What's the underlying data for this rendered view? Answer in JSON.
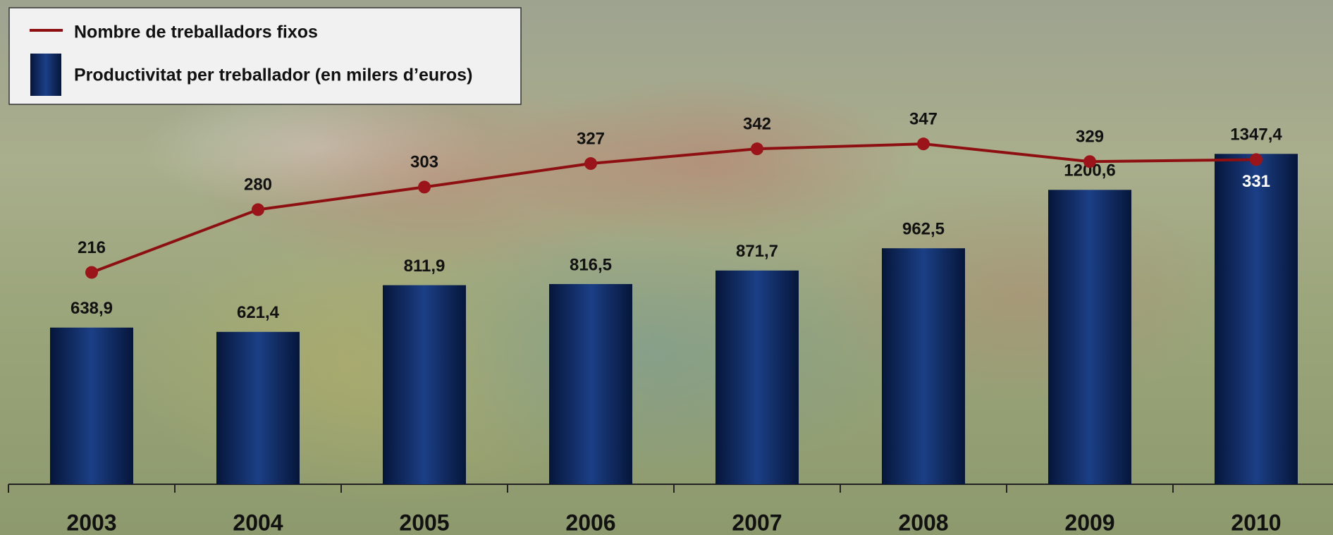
{
  "chart_data": {
    "type": "bar",
    "categories": [
      "2003",
      "2004",
      "2005",
      "2006",
      "2007",
      "2008",
      "2009",
      "2010"
    ],
    "series": [
      {
        "name": "Nombre de treballadors fixos",
        "type": "line",
        "axis": "y2",
        "color": "#8e0f12",
        "values": [
          216,
          280,
          303,
          327,
          342,
          347,
          329,
          331
        ]
      },
      {
        "name": "Productivitat per treballador (en milers d’euros)",
        "type": "bar",
        "color": "#0d2a66",
        "values": [
          638.9,
          621.4,
          811.9,
          816.5,
          871.7,
          962.5,
          1200.6,
          1347.4
        ],
        "value_labels": [
          "638,9",
          "621,4",
          "811,9",
          "816,5",
          "871,7",
          "962,5",
          "1200,6",
          "1347,4"
        ]
      }
    ],
    "ylim": [
      0,
      1400
    ],
    "y2lim": [
      0,
      350
    ],
    "legend": "top-left"
  }
}
